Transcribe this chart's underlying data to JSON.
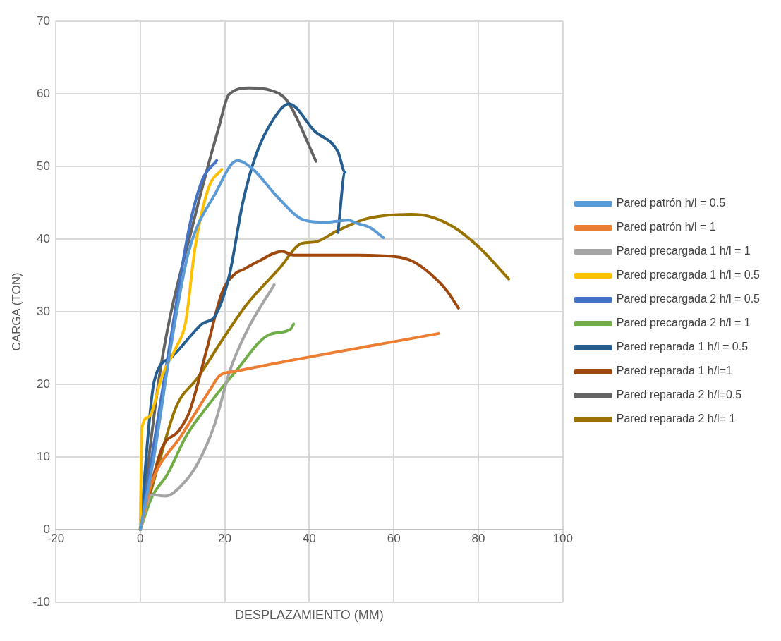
{
  "chart_data": {
    "type": "line",
    "xlabel": "DESPLAZAMIENTO (MM)",
    "ylabel": "CARGA (TON)",
    "xlim": [
      -20,
      100
    ],
    "ylim": [
      -10,
      70
    ],
    "xticks": [
      -20,
      0,
      20,
      40,
      60,
      80,
      100
    ],
    "yticks": [
      -10,
      0,
      10,
      20,
      30,
      40,
      50,
      60,
      70
    ],
    "grid": true,
    "legend": "right",
    "marker": "none",
    "line_style": "solid",
    "series": [
      {
        "name": "Pared patrón h/l = 0.5",
        "color": "#5b9bd5",
        "x": [
          0,
          3.3,
          7.3,
          11.4,
          17.8,
          23,
          26.7,
          32.3,
          38.8,
          43.6,
          49.3,
          51.1,
          54.3,
          57.5
        ],
        "values": [
          0,
          10.2,
          25.4,
          38.1,
          46.3,
          50.8,
          49.6,
          45.9,
          42.6,
          42.3,
          42.6,
          42.2,
          41.6,
          40.2
        ]
      },
      {
        "name": "Pared patrón h/l = 1",
        "color": "#ed7d31",
        "x": [
          0,
          2.7,
          9.8,
          16.8,
          18.8,
          22.6,
          70.7
        ],
        "values": [
          0,
          6.4,
          13,
          19.5,
          21.2,
          21.8,
          27
        ]
      },
      {
        "name": "Pared precargada 1 h/l = 1",
        "color": "#a5a5a5",
        "x": [
          0,
          2.7,
          5.9,
          9.8,
          13.6,
          17.5,
          21.4,
          25.9,
          31.7
        ],
        "values": [
          0,
          4.8,
          4.6,
          6.1,
          9.1,
          14.3,
          22.2,
          28.1,
          33.7
        ]
      },
      {
        "name": "Pared precargada 1 h/l = 0.5",
        "color": "#ffc000",
        "x": [
          0,
          0.4,
          2,
          5.2,
          8.5,
          10.7,
          13,
          16.2,
          19.3
        ],
        "values": [
          0,
          14,
          15.5,
          21.2,
          25.1,
          28.4,
          38.9,
          47.1,
          49.6
        ]
      },
      {
        "name": "Pared precargada 2 h/l = 0.5",
        "color": "#4472c4",
        "x": [
          0,
          7.3,
          11.4,
          14.6,
          18.1
        ],
        "values": [
          0,
          26.6,
          41,
          48,
          50.8
        ]
      },
      {
        "name": "Pared precargada 2 h/l = 1",
        "color": "#70ad47",
        "x": [
          0,
          2.7,
          6.5,
          11,
          16.2,
          22.6,
          30.4,
          35.6,
          36.3
        ],
        "values": [
          0,
          4.4,
          7.7,
          13,
          17.2,
          21.8,
          26.8,
          27.6,
          28.3
        ]
      },
      {
        "name": "Pared reparada 1 h/l = 0.5",
        "color": "#255e91",
        "x": [
          0,
          3.3,
          7.3,
          14.6,
          17.8,
          21,
          24.3,
          27.4,
          31.5,
          35.2,
          41.2,
          46.8,
          48.5,
          46.8
        ],
        "values": [
          0,
          20.4,
          23.7,
          28.3,
          29.5,
          34.8,
          45.1,
          51.6,
          56.5,
          58.6,
          54.9,
          52,
          49.2,
          40.9
        ]
      },
      {
        "name": "Pared reparada 1 h/l=1",
        "color": "#9e480e",
        "x": [
          0,
          5.2,
          9.1,
          11.7,
          15.6,
          19.4,
          22.6,
          24,
          27.8,
          33.6,
          36.2,
          49.8,
          60.1,
          64.6,
          68.5,
          72.4,
          75.3
        ],
        "values": [
          0,
          11.3,
          13.6,
          16.3,
          24.5,
          32.7,
          35.3,
          35.7,
          36.9,
          38.3,
          37.8,
          37.8,
          37.6,
          36.9,
          35.3,
          33,
          30.5
        ]
      },
      {
        "name": "Pared reparada 2 h/l=0.5",
        "color": "#636363",
        "x": [
          0,
          4.9,
          12.9,
          18.6,
          21,
          25.9,
          30.7,
          34.8,
          41.6
        ],
        "values": [
          0,
          22.5,
          43,
          55.4,
          59.9,
          60.8,
          60.5,
          59,
          50.7
        ]
      },
      {
        "name": "Pared reparada 2 h/l= 1",
        "color": "#997300",
        "x": [
          0,
          3.9,
          8.5,
          13.6,
          19.4,
          25.2,
          33,
          38.2,
          41.4,
          46.5,
          53.6,
          64,
          68.5,
          74.3,
          80.1,
          87.2
        ],
        "values": [
          0,
          8.1,
          16.9,
          20.9,
          26.1,
          31,
          36,
          39.4,
          39.6,
          41.1,
          42.8,
          43.4,
          43.1,
          41.6,
          38.9,
          34.5
        ]
      }
    ]
  }
}
